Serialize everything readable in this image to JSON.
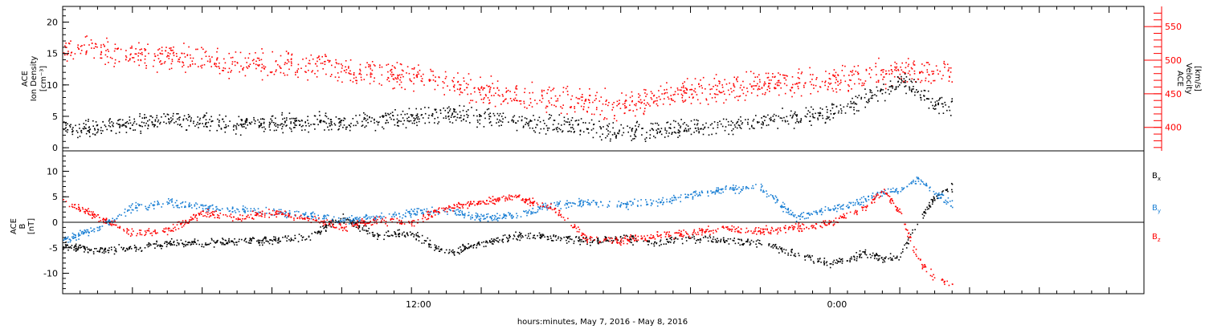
{
  "chart_data": [
    {
      "type": "scatter",
      "panel": "top",
      "ylabel_left": [
        "ACE",
        "Ion Density",
        "[cm⁻³]"
      ],
      "ylabel_right": [
        "ACE",
        "Velocity",
        "[km/s]"
      ],
      "ylim_left": [
        -0.5,
        22.5
      ],
      "ylim_right": [
        365,
        580
      ],
      "y_ticks_left": [
        0,
        5,
        10,
        15,
        20
      ],
      "y_ticks_right": [
        400,
        450,
        500,
        550
      ],
      "right_axis_color": "#ff0000",
      "series": [
        {
          "color": "#000000",
          "axis": "left",
          "x_hours": [
            0.0,
            1.0,
            2.0,
            3.0,
            4.0,
            5.0,
            6.0,
            7.0,
            8.0,
            9.0,
            10.0,
            11.0,
            12.0,
            13.0,
            14.0,
            15.0,
            16.0,
            17.0,
            18.0,
            19.0,
            20.0,
            21.0,
            22.0,
            23.0,
            23.5,
            24.0,
            24.5,
            25.0,
            25.5
          ],
          "values": [
            3.0,
            3.5,
            3.8,
            4.5,
            4.0,
            3.8,
            4.0,
            4.2,
            4.0,
            4.3,
            5.0,
            5.5,
            5.0,
            4.5,
            3.8,
            3.5,
            2.5,
            2.8,
            3.2,
            3.4,
            4.5,
            4.8,
            5.5,
            8.0,
            9.0,
            11.0,
            9.0,
            7.0,
            6.5
          ]
        },
        {
          "color": "#ff0000",
          "axis": "right",
          "x_hours": [
            0.0,
            1.0,
            2.0,
            3.0,
            4.0,
            5.0,
            6.0,
            7.0,
            8.0,
            9.0,
            10.0,
            11.0,
            12.0,
            13.0,
            14.0,
            15.0,
            16.0,
            17.0,
            18.0,
            19.0,
            20.0,
            21.0,
            22.0,
            23.0,
            23.5,
            24.0,
            24.5,
            25.0,
            25.5
          ],
          "values": [
            520,
            515,
            510,
            505,
            500,
            495,
            495,
            490,
            487,
            483,
            478,
            465,
            455,
            448,
            442,
            440,
            432,
            445,
            452,
            460,
            465,
            467,
            470,
            478,
            482,
            485,
            482,
            480,
            483
          ]
        }
      ]
    },
    {
      "type": "scatter",
      "panel": "bottom",
      "ylabel_left": [
        "ACE",
        "B",
        "[nT]"
      ],
      "ylim": [
        -14,
        14
      ],
      "y_ticks": [
        -10,
        -5,
        0,
        5,
        10
      ],
      "zero_line": true,
      "x_ticks_labeled": [
        "12:00",
        "0:00"
      ],
      "xlabel": "hours:minutes, May  7, 2016 - May  8, 2016",
      "xlim_hours": [
        0,
        31
      ],
      "series": [
        {
          "name": "Bx",
          "color": "#000000",
          "x_hours": [
            0.0,
            1.0,
            2.0,
            3.0,
            4.0,
            5.0,
            6.0,
            7.0,
            8.0,
            9.0,
            10.0,
            11.0,
            12.0,
            13.0,
            14.0,
            15.0,
            16.0,
            17.0,
            18.0,
            19.0,
            20.0,
            21.0,
            22.0,
            23.0,
            23.5,
            24.0,
            24.5,
            25.0,
            25.5
          ],
          "values": [
            -4.5,
            -5.5,
            -5.0,
            -4.0,
            -4.0,
            -3.5,
            -3.5,
            -3.0,
            1.0,
            -2.5,
            -2.0,
            -6.0,
            -4.0,
            -2.5,
            -2.8,
            -3.5,
            -3.0,
            -4.0,
            -3.0,
            -3.5,
            -4.0,
            -6.0,
            -8.0,
            -6.0,
            -7.0,
            -6.5,
            0.0,
            5.0,
            7.0
          ]
        },
        {
          "name": "By",
          "color": "#1a7fd4",
          "x_hours": [
            0.0,
            1.0,
            2.0,
            3.0,
            4.0,
            5.0,
            6.0,
            7.0,
            8.0,
            9.0,
            10.0,
            11.0,
            12.0,
            13.0,
            14.0,
            15.0,
            16.0,
            17.0,
            18.0,
            19.0,
            20.0,
            21.0,
            22.0,
            23.0,
            23.5,
            24.0,
            24.5,
            25.0,
            25.5
          ],
          "values": [
            -3.5,
            -1.0,
            3.0,
            4.0,
            3.0,
            2.5,
            2.0,
            1.5,
            0.5,
            1.0,
            2.0,
            2.5,
            1.0,
            1.5,
            3.5,
            4.0,
            3.5,
            4.0,
            5.5,
            6.5,
            7.0,
            1.0,
            2.5,
            4.5,
            6.0,
            6.5,
            8.5,
            6.0,
            3.5
          ]
        },
        {
          "name": "Bz",
          "color": "#ff0000",
          "x_hours": [
            0.0,
            1.0,
            2.0,
            3.0,
            4.0,
            5.0,
            6.0,
            7.0,
            8.0,
            9.0,
            10.0,
            11.0,
            12.0,
            13.0,
            14.0,
            15.0,
            16.0,
            17.0,
            18.0,
            19.0,
            20.0,
            21.0,
            22.0,
            23.0,
            23.5,
            24.0,
            24.5,
            25.0,
            25.5
          ],
          "values": [
            4.5,
            1.0,
            -2.0,
            -1.5,
            2.0,
            1.0,
            2.0,
            1.0,
            -1.0,
            0.5,
            0.0,
            3.0,
            4.0,
            5.0,
            3.0,
            -3.0,
            -3.5,
            -2.5,
            -2.0,
            -1.0,
            -1.5,
            -1.0,
            0.0,
            3.0,
            6.5,
            2.0,
            -7.0,
            -11.0,
            -12.0
          ]
        }
      ],
      "legend": [
        "Bx",
        "By",
        "Bz"
      ],
      "legend_placement": "right"
    }
  ]
}
